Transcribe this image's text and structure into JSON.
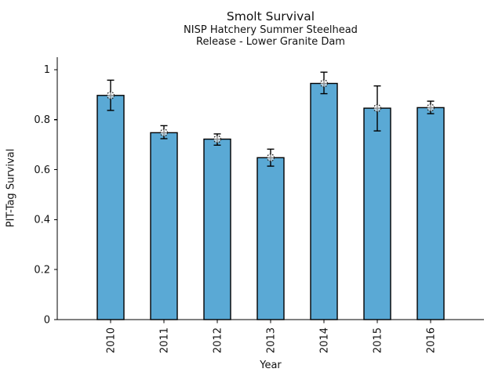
{
  "chart_data": {
    "type": "bar",
    "title": "Smolt Survival",
    "subtitle_line1": "NISP Hatchery Summer Steelhead",
    "subtitle_line2": "Release - Lower Granite Dam",
    "xlabel": "Year",
    "ylabel": "PIT-Tag Survival",
    "categories": [
      "2010",
      "2011",
      "2012",
      "2013",
      "2014",
      "2015",
      "2016"
    ],
    "values": [
      0.897,
      0.748,
      0.722,
      0.648,
      0.945,
      0.846,
      0.848
    ],
    "error_low": [
      0.837,
      0.724,
      0.698,
      0.614,
      0.904,
      0.755,
      0.824
    ],
    "error_high": [
      0.958,
      0.776,
      0.743,
      0.682,
      0.99,
      0.935,
      0.874
    ],
    "yticks": [
      0,
      0.2,
      0.4,
      0.6,
      0.8,
      1
    ],
    "ytick_labels": [
      "0",
      "0.2",
      "0.4",
      "0.6",
      "0.8",
      "1"
    ],
    "ylim": [
      0,
      1.05
    ],
    "xlim": [
      -1,
      7
    ],
    "bar_width_data_units": 0.5,
    "bar_color": "#5AA9D5",
    "bar_edge_color": "#000000",
    "error_color": "#000000",
    "marker": "open-circle-dashed-edge",
    "grid": false,
    "legend_position": "none",
    "spines": [
      "left",
      "bottom"
    ]
  }
}
